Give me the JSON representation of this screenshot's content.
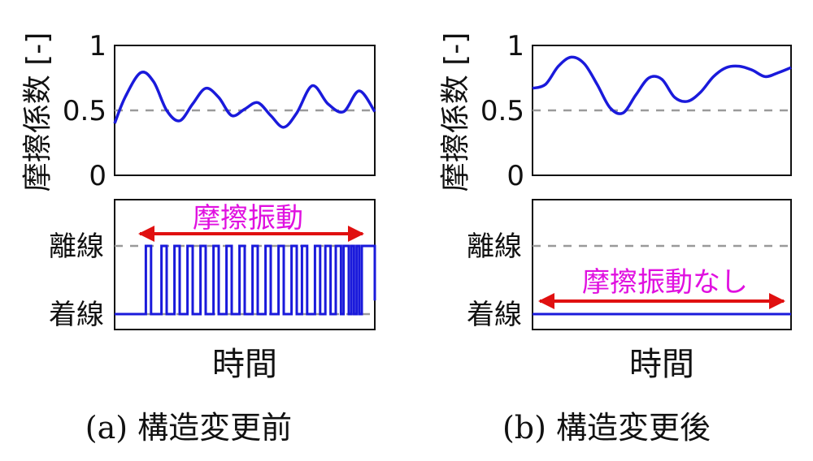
{
  "colors": {
    "series": "#1a1adb",
    "arrow": "#e01010",
    "annotation": "#e010e0",
    "dashed": "#9a9a9a",
    "axis": "#111111"
  },
  "panels": [
    {
      "id": "a",
      "caption": "(a) 構造変更前",
      "friction": {
        "ylabel": "摩擦係数 [-]",
        "yticks": [
          "0",
          "0.5",
          "1"
        ],
        "ylim": [
          0,
          1
        ],
        "ref_line": 0.5
      },
      "contact": {
        "yticks": [
          "着線",
          "離線"
        ],
        "annotation": "摩擦振動"
      },
      "xlabel": "時間"
    },
    {
      "id": "b",
      "caption": "(b) 構造変更後",
      "friction": {
        "ylabel": "摩擦係数 [-]",
        "yticks": [
          "0",
          "0.5",
          "1"
        ],
        "ylim": [
          0,
          1
        ],
        "ref_line": 0.5
      },
      "contact": {
        "yticks": [
          "着線",
          "離線"
        ],
        "annotation": "摩擦振動なし"
      },
      "xlabel": "時間"
    }
  ],
  "chart_data": [
    {
      "type": "line",
      "panel": "a-upper",
      "ylabel": "摩擦係数 [-]",
      "ylim": [
        0,
        1
      ],
      "x": [
        0,
        0.04,
        0.1,
        0.15,
        0.2,
        0.25,
        0.3,
        0.35,
        0.4,
        0.45,
        0.5,
        0.55,
        0.6,
        0.65,
        0.7,
        0.76,
        0.82,
        0.88,
        0.94,
        1.0
      ],
      "series": [
        {
          "values": [
            0.4,
            0.6,
            0.79,
            0.72,
            0.5,
            0.42,
            0.55,
            0.67,
            0.6,
            0.46,
            0.51,
            0.56,
            0.46,
            0.37,
            0.48,
            0.69,
            0.55,
            0.49,
            0.65,
            0.49
          ]
        }
      ]
    },
    {
      "type": "line",
      "panel": "a-lower",
      "yticks": [
        "着線",
        "離線"
      ],
      "state_changes": [
        0.0,
        0.12,
        0.14,
        0.18,
        0.2,
        0.23,
        0.25,
        0.28,
        0.3,
        0.33,
        0.35,
        0.38,
        0.4,
        0.43,
        0.45,
        0.48,
        0.5,
        0.53,
        0.55,
        0.58,
        0.6,
        0.63,
        0.65,
        0.68,
        0.7,
        0.72,
        0.74,
        0.77,
        0.79,
        0.81,
        0.83,
        0.85,
        0.87,
        0.88,
        0.9,
        0.91,
        0.92,
        0.93,
        0.94,
        0.95,
        1.0
      ],
      "values": [
        0,
        1,
        0,
        1,
        0,
        1,
        0,
        1,
        0,
        1,
        0,
        1,
        0,
        1,
        0,
        1,
        0,
        1,
        0,
        1,
        0,
        1,
        0,
        1,
        0,
        1,
        0,
        1,
        0,
        1,
        0,
        1,
        0,
        1,
        0,
        1,
        0,
        1,
        0,
        1,
        0.2
      ]
    },
    {
      "type": "line",
      "panel": "b-upper",
      "ylabel": "摩擦係数 [-]",
      "ylim": [
        0,
        1
      ],
      "x": [
        0,
        0.05,
        0.1,
        0.15,
        0.2,
        0.25,
        0.3,
        0.35,
        0.4,
        0.45,
        0.5,
        0.55,
        0.6,
        0.65,
        0.7,
        0.75,
        0.8,
        0.85,
        0.9,
        0.95,
        1.0
      ],
      "series": [
        {
          "values": [
            0.67,
            0.7,
            0.84,
            0.91,
            0.86,
            0.7,
            0.52,
            0.48,
            0.62,
            0.75,
            0.74,
            0.6,
            0.57,
            0.64,
            0.76,
            0.83,
            0.84,
            0.81,
            0.76,
            0.79,
            0.83
          ]
        }
      ]
    },
    {
      "type": "line",
      "panel": "b-lower",
      "yticks": [
        "着線",
        "離線"
      ],
      "x": [
        0,
        1
      ],
      "values": [
        0,
        0
      ]
    }
  ]
}
